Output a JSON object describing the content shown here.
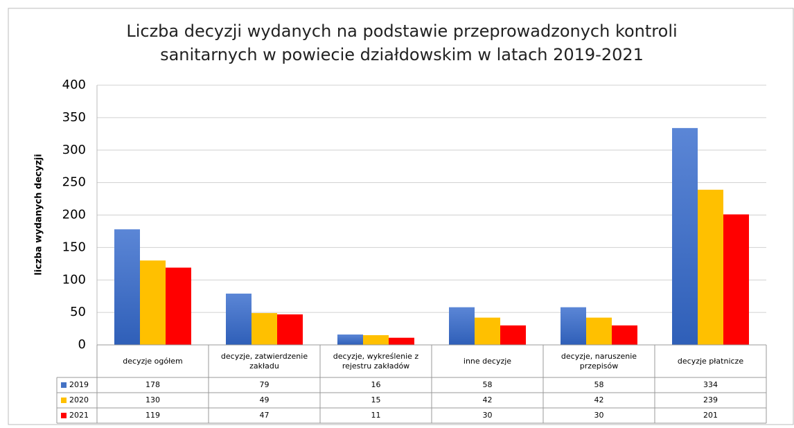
{
  "chart_data": {
    "type": "bar",
    "title": "Liczba decyzji wydanych na podstawie przeprowadzonych kontroli sanitarnych w powiecie działdowskim w latach 2019-2021",
    "y_label": "liczba wydanych decyzji",
    "categories": [
      "decyzje ogółem",
      "decyzje, zatwierdzenie zakładu",
      "decyzje, wykreślenie z rejestru zakładów",
      "inne decyzje",
      "decyzje, naruszenie przepisów",
      "decyzje płatnicze"
    ],
    "series": [
      {
        "name": "2019",
        "color": "#4472c4",
        "values": [
          178,
          79,
          16,
          58,
          58,
          334
        ]
      },
      {
        "name": "2020",
        "color": "#ffc000",
        "values": [
          130,
          49,
          15,
          42,
          42,
          239
        ]
      },
      {
        "name": "2021",
        "color": "#ff0000",
        "values": [
          119,
          47,
          11,
          30,
          30,
          201
        ]
      }
    ],
    "ylim": [
      0,
      400
    ],
    "yticks": [
      0,
      50,
      100,
      150,
      200,
      250,
      300,
      350,
      400
    ],
    "grid": true,
    "data_table": true
  }
}
